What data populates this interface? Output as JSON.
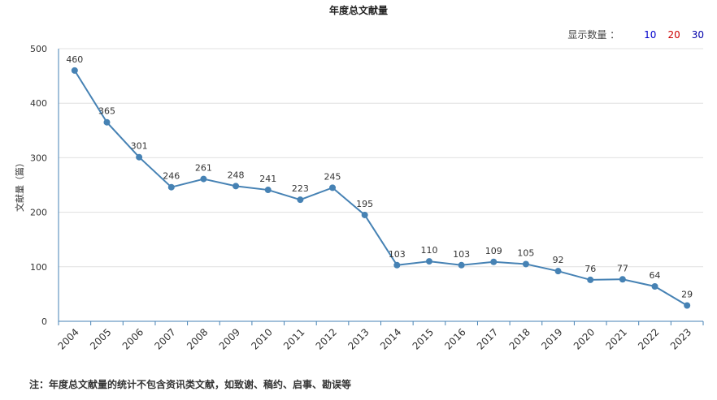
{
  "title": "年度总文献量",
  "display_count": {
    "label": "显示数量 ：",
    "options": [
      "10",
      "20",
      "30"
    ]
  },
  "note": "注：年度总文献量的统计不包含资讯类文献，如致谢、稿约、启事、勘误等",
  "colors": {
    "line": "#4682b4",
    "grid": "#e0e0e0",
    "axis": "#4682b4"
  },
  "chart_data": {
    "type": "line",
    "title": "年度总文献量",
    "xlabel": "",
    "ylabel": "文献量（篇）",
    "ylim": [
      0,
      500
    ],
    "yticks": [
      0,
      100,
      200,
      300,
      400,
      500
    ],
    "grid": true,
    "categories": [
      "2004",
      "2005",
      "2006",
      "2007",
      "2008",
      "2009",
      "2010",
      "2011",
      "2012",
      "2013",
      "2014",
      "2015",
      "2016",
      "2017",
      "2018",
      "2019",
      "2020",
      "2021",
      "2022",
      "2023"
    ],
    "series": [
      {
        "values": [
          460,
          365,
          301,
          246,
          261,
          248,
          241,
          223,
          245,
          195,
          103,
          110,
          103,
          109,
          105,
          92,
          76,
          77,
          64,
          29
        ]
      }
    ]
  }
}
